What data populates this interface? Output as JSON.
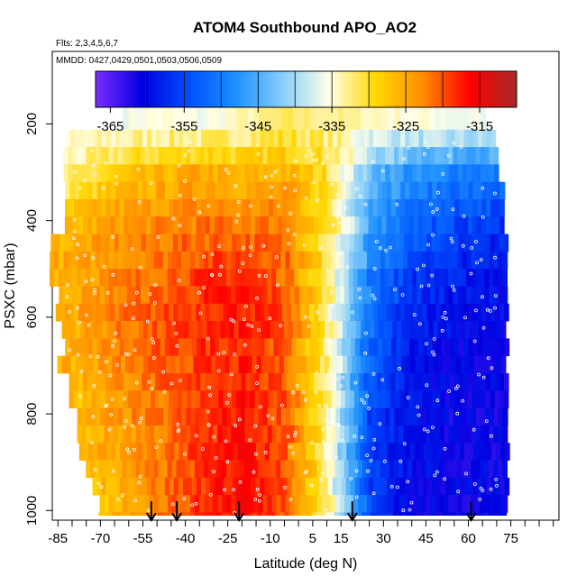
{
  "chart_data": {
    "type": "heatmap",
    "title": "ATOM4 Southbound APO_AO2",
    "flights_label": "Flts: 2,3,4,5,6,7",
    "dates_label": "MMDD: 0427,0429,0501,0503,0506,0509",
    "xlabel": "Latitude (deg N)",
    "ylabel": "PSXC (mbar)",
    "xlim": [
      -87,
      92
    ],
    "ylim": [
      1020,
      50
    ],
    "x_ticks": [
      -85,
      -70,
      -55,
      -40,
      -25,
      -10,
      5,
      15,
      30,
      45,
      60,
      75
    ],
    "x_tick_labels": [
      "-85",
      "-70",
      "-55",
      "-40",
      "-25",
      "-10",
      "5",
      "15",
      "30",
      "45",
      "60",
      "75"
    ],
    "y_ticks": [
      200,
      400,
      600,
      800,
      1000
    ],
    "y_tick_labels": [
      "200",
      "400",
      "600",
      "800",
      "1000"
    ],
    "colorbar": {
      "min": -367,
      "max": -310,
      "ticks": [
        -365,
        -355,
        -345,
        -335,
        -325,
        -315
      ],
      "tick_labels": [
        "-365",
        "-355",
        "-345",
        "-335",
        "-325",
        "-315"
      ],
      "colors": [
        "#7b2cff",
        "#0000e0",
        "#0050ff",
        "#1e90ff",
        "#87cefa",
        "#ffffe8",
        "#ffd700",
        "#ff8c00",
        "#ff0000",
        "#a52a2a"
      ]
    },
    "profile_arrows_lat": [
      -52,
      -43,
      -21,
      19,
      61
    ],
    "field_description": {
      "columns_lat": [
        -80,
        -65,
        -50,
        -35,
        -20,
        -5,
        10,
        25,
        40,
        55,
        70
      ],
      "rows_p": [
        200,
        300,
        400,
        500,
        600,
        700,
        800,
        900,
        1000
      ],
      "values": [
        [
          -336,
          -336,
          -335,
          -336,
          -334,
          -332,
          -333,
          -334,
          -335,
          -336,
          -336
        ],
        [
          -333,
          -329,
          -327,
          -325,
          -327,
          -326,
          -330,
          -343,
          -348,
          -349,
          -350
        ],
        [
          -327,
          -324,
          -323,
          -322,
          -322,
          -322,
          -331,
          -346,
          -352,
          -355,
          -356
        ],
        [
          -325,
          -323,
          -321,
          -319,
          -318,
          -321,
          -332,
          -350,
          -356,
          -358,
          -359
        ],
        [
          -325,
          -322,
          -320,
          -318,
          -317,
          -320,
          -333,
          -352,
          -358,
          -360,
          -360
        ],
        [
          -326,
          -323,
          -321,
          -319,
          -318,
          -321,
          -333,
          -353,
          -359,
          -361,
          -361
        ],
        [
          -327,
          -324,
          -322,
          -319,
          -317,
          -320,
          -334,
          -355,
          -360,
          -361,
          -361
        ],
        [
          -328,
          -325,
          -322,
          -319,
          -316,
          -320,
          -334,
          -356,
          -360,
          -361,
          -361
        ],
        [
          -330,
          -326,
          -322,
          -318,
          -316,
          -320,
          -333,
          -356,
          -361,
          -361,
          -361
        ]
      ]
    }
  }
}
